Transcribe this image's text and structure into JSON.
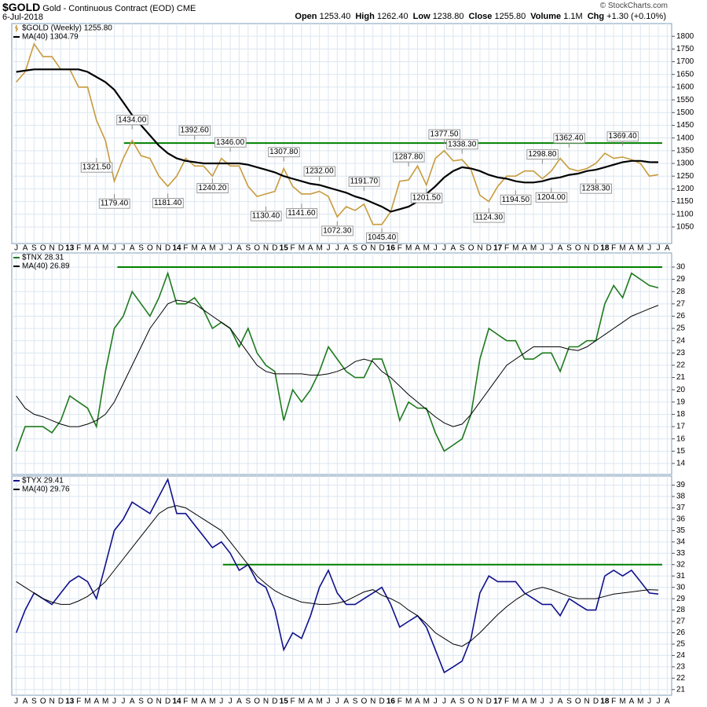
{
  "header": {
    "symbol": "$GOLD",
    "description": "Gold - Continuous Contract (EOD)",
    "exchange": "CME",
    "date": "6-Jul-2018",
    "copyright": "© StockCharts.com",
    "quote": [
      {
        "label": "Open",
        "value": "1253.40"
      },
      {
        "label": "High",
        "value": "1262.40"
      },
      {
        "label": "Low",
        "value": "1238.80"
      },
      {
        "label": "Close",
        "value": "1255.80"
      },
      {
        "label": "Volume",
        "value": "1.1M"
      },
      {
        "label": "Chg",
        "value": "+1.30 (+0.10%)"
      }
    ]
  },
  "chart_data": [
    {
      "type": "line",
      "categories": [
        "J",
        "A",
        "S",
        "O",
        "N",
        "D",
        "13",
        "F",
        "M",
        "A",
        "M",
        "J",
        "J",
        "A",
        "S",
        "O",
        "N",
        "D",
        "14",
        "F",
        "M",
        "A",
        "M",
        "J",
        "J",
        "A",
        "S",
        "O",
        "N",
        "D",
        "15",
        "F",
        "M",
        "A",
        "M",
        "J",
        "J",
        "A",
        "S",
        "O",
        "N",
        "D",
        "16",
        "F",
        "M",
        "A",
        "M",
        "J",
        "J",
        "A",
        "S",
        "O",
        "N",
        "D",
        "17",
        "F",
        "M",
        "A",
        "M",
        "J",
        "J",
        "A",
        "S",
        "O",
        "N",
        "D",
        "18",
        "F",
        "M",
        "A",
        "M",
        "J",
        "J",
        "A"
      ],
      "series": [
        {
          "name": "$GOLD (Weekly) 1255.80",
          "color": "#c89b3c",
          "values": [
            1620,
            1660,
            1770,
            1720,
            1720,
            1670,
            1670,
            1600,
            1600,
            1470,
            1390,
            1230,
            1320,
            1390,
            1330,
            1320,
            1250,
            1210,
            1250,
            1320,
            1290,
            1290,
            1250,
            1320,
            1290,
            1290,
            1210,
            1170,
            1180,
            1190,
            1280,
            1210,
            1180,
            1180,
            1190,
            1170,
            1090,
            1130,
            1115,
            1140,
            1060,
            1060,
            1110,
            1230,
            1235,
            1290,
            1215,
            1320,
            1350,
            1310,
            1315,
            1275,
            1175,
            1150,
            1210,
            1250,
            1250,
            1270,
            1270,
            1240,
            1270,
            1320,
            1280,
            1270,
            1280,
            1300,
            1340,
            1320,
            1325,
            1315,
            1300,
            1250,
            1255.8,
            null
          ]
        },
        {
          "name": "MA(40) 1304.79",
          "color": "#000000",
          "values": [
            1660,
            1665,
            1670,
            1670,
            1670,
            1670,
            1670,
            1670,
            1660,
            1640,
            1620,
            1590,
            1540,
            1490,
            1450,
            1410,
            1370,
            1340,
            1320,
            1310,
            1305,
            1300,
            1300,
            1300,
            1300,
            1300,
            1295,
            1285,
            1275,
            1265,
            1250,
            1240,
            1230,
            1220,
            1215,
            1205,
            1195,
            1185,
            1170,
            1160,
            1145,
            1130,
            1110,
            1120,
            1130,
            1150,
            1180,
            1210,
            1245,
            1270,
            1285,
            1280,
            1270,
            1255,
            1245,
            1240,
            1230,
            1225,
            1225,
            1230,
            1240,
            1245,
            1255,
            1260,
            1270,
            1275,
            1285,
            1295,
            1305,
            1310,
            1310,
            1305,
            1304.79,
            null
          ]
        }
      ],
      "annotations": {
        "values": [
          null,
          null,
          null,
          null,
          null,
          null,
          null,
          null,
          null,
          1321.5,
          null,
          1179.4,
          null,
          1434,
          null,
          null,
          null,
          1181.4,
          null,
          null,
          1392.6,
          null,
          1240.2,
          null,
          1346,
          null,
          null,
          null,
          1130.4,
          null,
          1307.8,
          null,
          1141.6,
          null,
          1232,
          null,
          1072.3,
          null,
          null,
          1191.7,
          null,
          1045.4,
          null,
          null,
          1287.8,
          null,
          1201.5,
          null,
          1377.5,
          null,
          1338.3,
          null,
          null,
          1124.3,
          null,
          null,
          1194.5,
          null,
          null,
          1298.8,
          1204,
          null,
          1362.4,
          null,
          null,
          1238.3,
          null,
          null,
          1369.4,
          null,
          null,
          null,
          null,
          null
        ],
        "value_labels": [
          null,
          null,
          null,
          null,
          null,
          null,
          null,
          null,
          null,
          "1321.50",
          null,
          "1179.40",
          null,
          "1434.00",
          null,
          null,
          null,
          "1181.40",
          null,
          null,
          "1392.60",
          null,
          "1240.20",
          null,
          "1346.00",
          null,
          null,
          null,
          "1130.40",
          null,
          "1307.80",
          null,
          "1141.60",
          null,
          "1232.00",
          null,
          "1072.30",
          null,
          null,
          "1191.70",
          null,
          "1045.40",
          null,
          null,
          "1287.80",
          null,
          "1201.50",
          null,
          "1377.50",
          null,
          "1338.30",
          null,
          null,
          "1124.30",
          null,
          null,
          "1194.50",
          null,
          null,
          "1298.80",
          "1204.00",
          null,
          "1362.40",
          null,
          null,
          "1238.30",
          null,
          null,
          "1369.40",
          null,
          null,
          null,
          null,
          null
        ]
      },
      "reference_line": {
        "value": 1380,
        "color": "#008000"
      },
      "ylim": [
        985,
        1850
      ],
      "yticks": [
        1050,
        1100,
        1150,
        1200,
        1250,
        1300,
        1350,
        1400,
        1450,
        1500,
        1550,
        1600,
        1650,
        1700,
        1750,
        1800
      ],
      "grid": true
    },
    {
      "type": "line",
      "series": [
        {
          "name": "$TNX 28.31",
          "color": "#1e7a1e",
          "values": [
            15,
            17,
            17,
            17,
            16.5,
            17.5,
            19.5,
            19,
            18.5,
            17,
            21.5,
            25,
            26,
            28,
            27,
            26,
            27.5,
            29.5,
            27,
            27,
            27.5,
            26.5,
            25,
            25.5,
            25,
            23.5,
            25,
            23,
            22,
            21.5,
            17.5,
            20,
            19,
            20,
            21.5,
            23.5,
            22.5,
            21.5,
            21,
            21,
            22.5,
            22.5,
            20.5,
            17.5,
            19,
            18.5,
            18.5,
            16.5,
            15,
            15.5,
            16,
            18,
            22.5,
            25,
            24.5,
            24,
            24,
            22.5,
            22.5,
            23,
            23,
            21.5,
            23.5,
            23.5,
            24,
            24,
            27,
            28.5,
            27.5,
            29.5,
            29,
            28.5,
            28.31,
            null
          ]
        },
        {
          "name": "MA(40) 26.89",
          "color": "#000000",
          "values": [
            19.5,
            18.5,
            18,
            17.8,
            17.5,
            17.2,
            17,
            17,
            17.2,
            17.5,
            18,
            19,
            20.5,
            22,
            23.5,
            25,
            26,
            27,
            27.3,
            27.2,
            27,
            26.5,
            26,
            25.5,
            25,
            24,
            23,
            22,
            21.5,
            21.3,
            21.3,
            21.3,
            21.3,
            21.2,
            21.2,
            21.3,
            21.5,
            21.8,
            22.3,
            22.5,
            22.3,
            21.5,
            21,
            20.3,
            19.6,
            19,
            18.4,
            17.8,
            17.3,
            17,
            17.2,
            18,
            19,
            20,
            21,
            22,
            22.5,
            23,
            23.5,
            23.5,
            23.5,
            23.5,
            23.3,
            23.2,
            23.5,
            24,
            24.5,
            25,
            25.5,
            26,
            26.3,
            26.6,
            26.89,
            null
          ]
        }
      ],
      "reference_line": {
        "value": 30,
        "color": "#008000"
      },
      "ylim": [
        13.1,
        31.15
      ],
      "yticks": [
        14,
        15,
        16,
        17,
        18,
        19,
        20,
        21,
        22,
        23,
        24,
        25,
        26,
        27,
        28,
        29,
        30
      ],
      "grid": true
    },
    {
      "type": "line",
      "categories": [
        "J",
        "A",
        "S",
        "O",
        "N",
        "D",
        "13",
        "F",
        "M",
        "A",
        "M",
        "J",
        "J",
        "A",
        "S",
        "O",
        "N",
        "D",
        "14",
        "F",
        "M",
        "A",
        "M",
        "J",
        "J",
        "A",
        "S",
        "O",
        "N",
        "D",
        "15",
        "F",
        "M",
        "A",
        "M",
        "J",
        "J",
        "A",
        "S",
        "O",
        "N",
        "D",
        "16",
        "F",
        "M",
        "A",
        "M",
        "J",
        "J",
        "A",
        "S",
        "O",
        "N",
        "D",
        "17",
        "F",
        "M",
        "A",
        "M",
        "J",
        "J",
        "A",
        "S",
        "O",
        "N",
        "D",
        "18",
        "F",
        "M",
        "A",
        "M",
        "J",
        "J",
        "A"
      ],
      "series": [
        {
          "name": "$TYX 29.41",
          "color": "#10108c",
          "values": [
            26,
            28,
            29.5,
            29,
            28.5,
            29.5,
            30.5,
            31,
            30.5,
            29,
            32,
            35,
            36,
            37.5,
            37,
            36.5,
            38,
            39.5,
            36.5,
            36.5,
            35.5,
            34.5,
            33.5,
            34,
            33,
            31.5,
            32,
            30.5,
            30,
            28,
            24.5,
            26,
            25.5,
            27.5,
            30,
            31.5,
            29.5,
            28.5,
            28.5,
            29,
            29.5,
            30,
            28.5,
            26.5,
            27,
            27.5,
            26.5,
            24.5,
            22.5,
            23,
            23.5,
            25.5,
            29.5,
            31,
            30.5,
            30.5,
            30.5,
            29.5,
            29,
            28.5,
            28.5,
            27.5,
            29,
            28.5,
            28,
            28,
            31,
            31.5,
            31,
            31.5,
            30.5,
            29.5,
            29.41,
            null
          ]
        },
        {
          "name": "MA(40) 29.76",
          "color": "#000000",
          "values": [
            30.5,
            30,
            29.5,
            29,
            28.7,
            28.5,
            28.5,
            28.8,
            29.2,
            29.8,
            30.5,
            31.5,
            32.5,
            33.5,
            34.5,
            35.5,
            36.5,
            37,
            37.2,
            37,
            36.5,
            36,
            35.5,
            35,
            34,
            33,
            32,
            31,
            30.3,
            29.7,
            29.3,
            29,
            28.7,
            28.6,
            28.5,
            28.5,
            28.6,
            28.8,
            29.2,
            29.6,
            29.8,
            29.3,
            29,
            28.6,
            28,
            27.5,
            26.8,
            26,
            25.5,
            25,
            24.8,
            25.3,
            26,
            26.8,
            27.6,
            28.3,
            28.9,
            29.4,
            29.8,
            30,
            29.8,
            29.5,
            29.2,
            29,
            29,
            29,
            29.2,
            29.4,
            29.5,
            29.6,
            29.7,
            29.8,
            29.76,
            null
          ]
        }
      ],
      "reference_line": {
        "value": 32,
        "color": "#008000"
      },
      "ylim": [
        20.5,
        39.8
      ],
      "yticks": [
        21,
        22,
        23,
        24,
        25,
        26,
        27,
        28,
        29,
        30,
        31,
        32,
        33,
        34,
        35,
        36,
        37,
        38,
        39
      ],
      "grid": true
    }
  ]
}
